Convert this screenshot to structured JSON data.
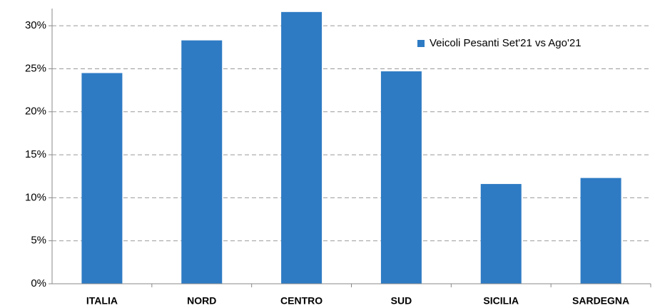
{
  "chart_data": {
    "type": "bar",
    "categories": [
      "ITALIA",
      "NORD",
      "CENTRO",
      "SUD",
      "SICILIA",
      "SARDEGNA"
    ],
    "series": [
      {
        "name": "Veicoli Pesanti Set'21 vs Ago'21",
        "color": "#2e7bc4",
        "values": [
          24.5,
          28.3,
          31.6,
          24.7,
          11.6,
          12.3
        ]
      }
    ],
    "ylim": [
      0,
      32
    ],
    "yticks": [
      {
        "value": 0,
        "label": "0%"
      },
      {
        "value": 5,
        "label": "5%"
      },
      {
        "value": 10,
        "label": "10%"
      },
      {
        "value": 15,
        "label": "15%"
      },
      {
        "value": 20,
        "label": "20%"
      },
      {
        "value": 25,
        "label": "25%"
      },
      {
        "value": 30,
        "label": "30%"
      }
    ],
    "grid": true,
    "legend": "top-right"
  }
}
